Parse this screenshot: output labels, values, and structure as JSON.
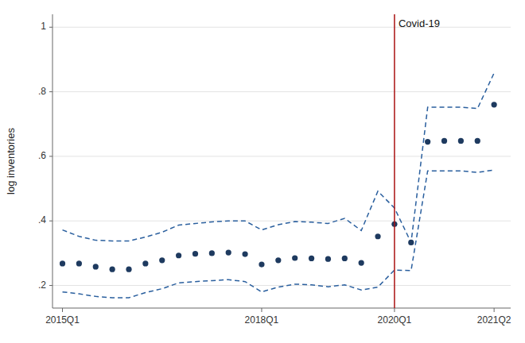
{
  "chart_data": {
    "type": "scatter",
    "ylabel": "log inventories",
    "x": [
      15.0,
      15.25,
      15.5,
      15.75,
      16.0,
      16.25,
      16.5,
      16.75,
      17.0,
      17.25,
      17.5,
      17.75,
      18.0,
      18.25,
      18.5,
      18.75,
      19.0,
      19.25,
      19.5,
      19.75,
      20.0,
      20.25,
      20.5,
      20.75,
      21.0,
      21.25,
      21.5
    ],
    "series": [
      {
        "type": "scatter",
        "marker": "circle",
        "color": "#1e3a5f",
        "values": [
          0.268,
          0.268,
          0.258,
          0.25,
          0.25,
          0.268,
          0.278,
          0.293,
          0.298,
          0.3,
          0.302,
          0.297,
          0.265,
          0.278,
          0.285,
          0.284,
          0.282,
          0.284,
          0.27,
          0.352,
          0.39,
          0.333,
          0.645,
          0.648,
          0.648,
          0.648,
          0.76
        ]
      },
      {
        "type": "line",
        "line_style": "dashed",
        "color": "#2a5f9e",
        "values": [
          0.372,
          0.352,
          0.34,
          0.338,
          0.338,
          0.35,
          0.365,
          0.387,
          0.392,
          0.397,
          0.4,
          0.4,
          0.372,
          0.388,
          0.398,
          0.396,
          0.392,
          0.408,
          0.37,
          0.492,
          0.44,
          0.333,
          0.752,
          0.752,
          0.752,
          0.748,
          0.858
        ]
      },
      {
        "type": "line",
        "line_style": "dashed",
        "color": "#2a5f9e",
        "values": [
          0.18,
          0.174,
          0.166,
          0.162,
          0.162,
          0.178,
          0.19,
          0.208,
          0.212,
          0.215,
          0.218,
          0.212,
          0.18,
          0.195,
          0.204,
          0.202,
          0.196,
          0.202,
          0.186,
          0.195,
          0.248,
          0.246,
          0.555,
          0.555,
          0.555,
          0.55,
          0.558
        ]
      }
    ],
    "annotations": [
      {
        "x": 20.0,
        "label": "Covid-19",
        "color": "#aa1111"
      }
    ],
    "xlim": [
      14.85,
      21.75
    ],
    "xticks": [
      {
        "value": 15.0,
        "label": "2015Q1"
      },
      {
        "value": 18.0,
        "label": "2018Q1"
      },
      {
        "value": 20.0,
        "label": "2020Q1"
      },
      {
        "value": 21.5,
        "label": "2021Q2"
      }
    ],
    "ylim": [
      0.13,
      1.04
    ],
    "yticks": [
      {
        "value": 0.2,
        "label": ".2"
      },
      {
        "value": 0.4,
        "label": ".4"
      },
      {
        "value": 0.6,
        "label": ".6"
      },
      {
        "value": 0.8,
        "label": ".8"
      },
      1.0
    ],
    "grid": true
  }
}
